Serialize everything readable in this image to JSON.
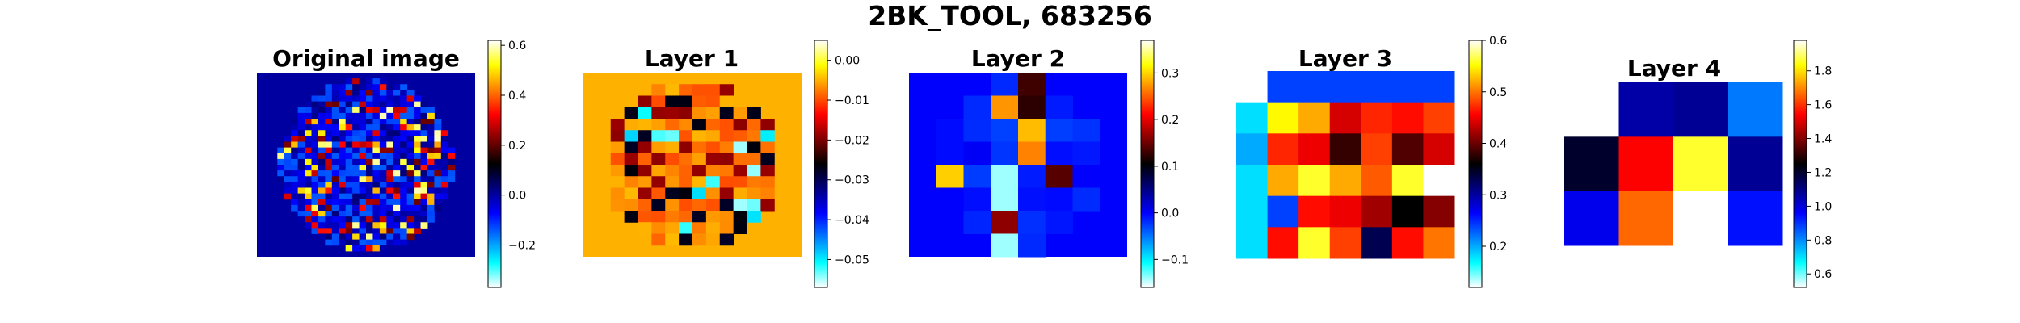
{
  "figure": {
    "title": "2BK_TOOL, 683256"
  },
  "colors": {
    "background": "#ffffff",
    "spine": "#000000"
  },
  "chart_data": [
    {
      "type": "heatmap",
      "title": "Original image",
      "colormap": "cyan-blue-black-red-yellow (diverging)",
      "shape": "circular brain slice, ~32x32 pixels with a circular masked region",
      "colorbar": {
        "range": [
          -0.37,
          0.62
        ],
        "ticks": [
          -0.2,
          0.0,
          0.2,
          0.4,
          0.6
        ],
        "tick_labels": [
          "−0.2",
          "0.0",
          "0.2",
          "0.4",
          "0.6"
        ]
      }
    },
    {
      "type": "heatmap",
      "title": "Layer 1",
      "colormap": "cyan-blue-black-red-yellow (diverging)",
      "shape": "circular region ~16x16 pixels inside a solid red background",
      "colorbar": {
        "range": [
          -0.057,
          0.005
        ],
        "ticks": [
          -0.05,
          -0.04,
          -0.03,
          -0.02,
          -0.01,
          0.0
        ],
        "tick_labels": [
          "−0.05",
          "−0.04",
          "−0.03",
          "−0.02",
          "−0.01",
          "0.00"
        ]
      }
    },
    {
      "type": "heatmap",
      "title": "Layer 2",
      "colormap": "cyan-blue-black-red-yellow (diverging)",
      "shape": "circular region ~8x8 pixels inside a solid blue background",
      "colorbar": {
        "range": [
          -0.16,
          0.37
        ],
        "ticks": [
          -0.1,
          0.0,
          0.1,
          0.2,
          0.3
        ],
        "tick_labels": [
          "−0.1",
          "0.0",
          "0.1",
          "0.2",
          "0.3"
        ]
      }
    },
    {
      "type": "heatmap",
      "title": "Layer 3",
      "colormap": "cyan-blue-black-red-yellow (diverging)",
      "grid_size": [
        4,
        6
      ],
      "colorbar": {
        "range": [
          0.12,
          0.6
        ],
        "ticks": [
          0.2,
          0.3,
          0.4,
          0.5,
          0.6
        ],
        "tick_labels": [
          "0.2",
          "0.3",
          "0.4",
          "0.5",
          "0.6"
        ]
      }
    },
    {
      "type": "heatmap",
      "title": "Layer 4",
      "colormap": "cyan-blue-black-red-yellow (diverging)",
      "grid_size": [
        3,
        4
      ],
      "values": [
        [
          null,
          1.06,
          1.08,
          0.82
        ],
        [
          1.2,
          1.54,
          1.86,
          1.08
        ],
        [
          0.98,
          1.66,
          0.52,
          0.94
        ]
      ],
      "colorbar": {
        "range": [
          0.52,
          1.98
        ],
        "ticks": [
          0.6,
          0.8,
          1.0,
          1.2,
          1.4,
          1.6,
          1.8
        ],
        "tick_labels": [
          "0.6",
          "0.8",
          "1.0",
          "1.2",
          "1.4",
          "1.6",
          "1.8"
        ]
      }
    }
  ]
}
